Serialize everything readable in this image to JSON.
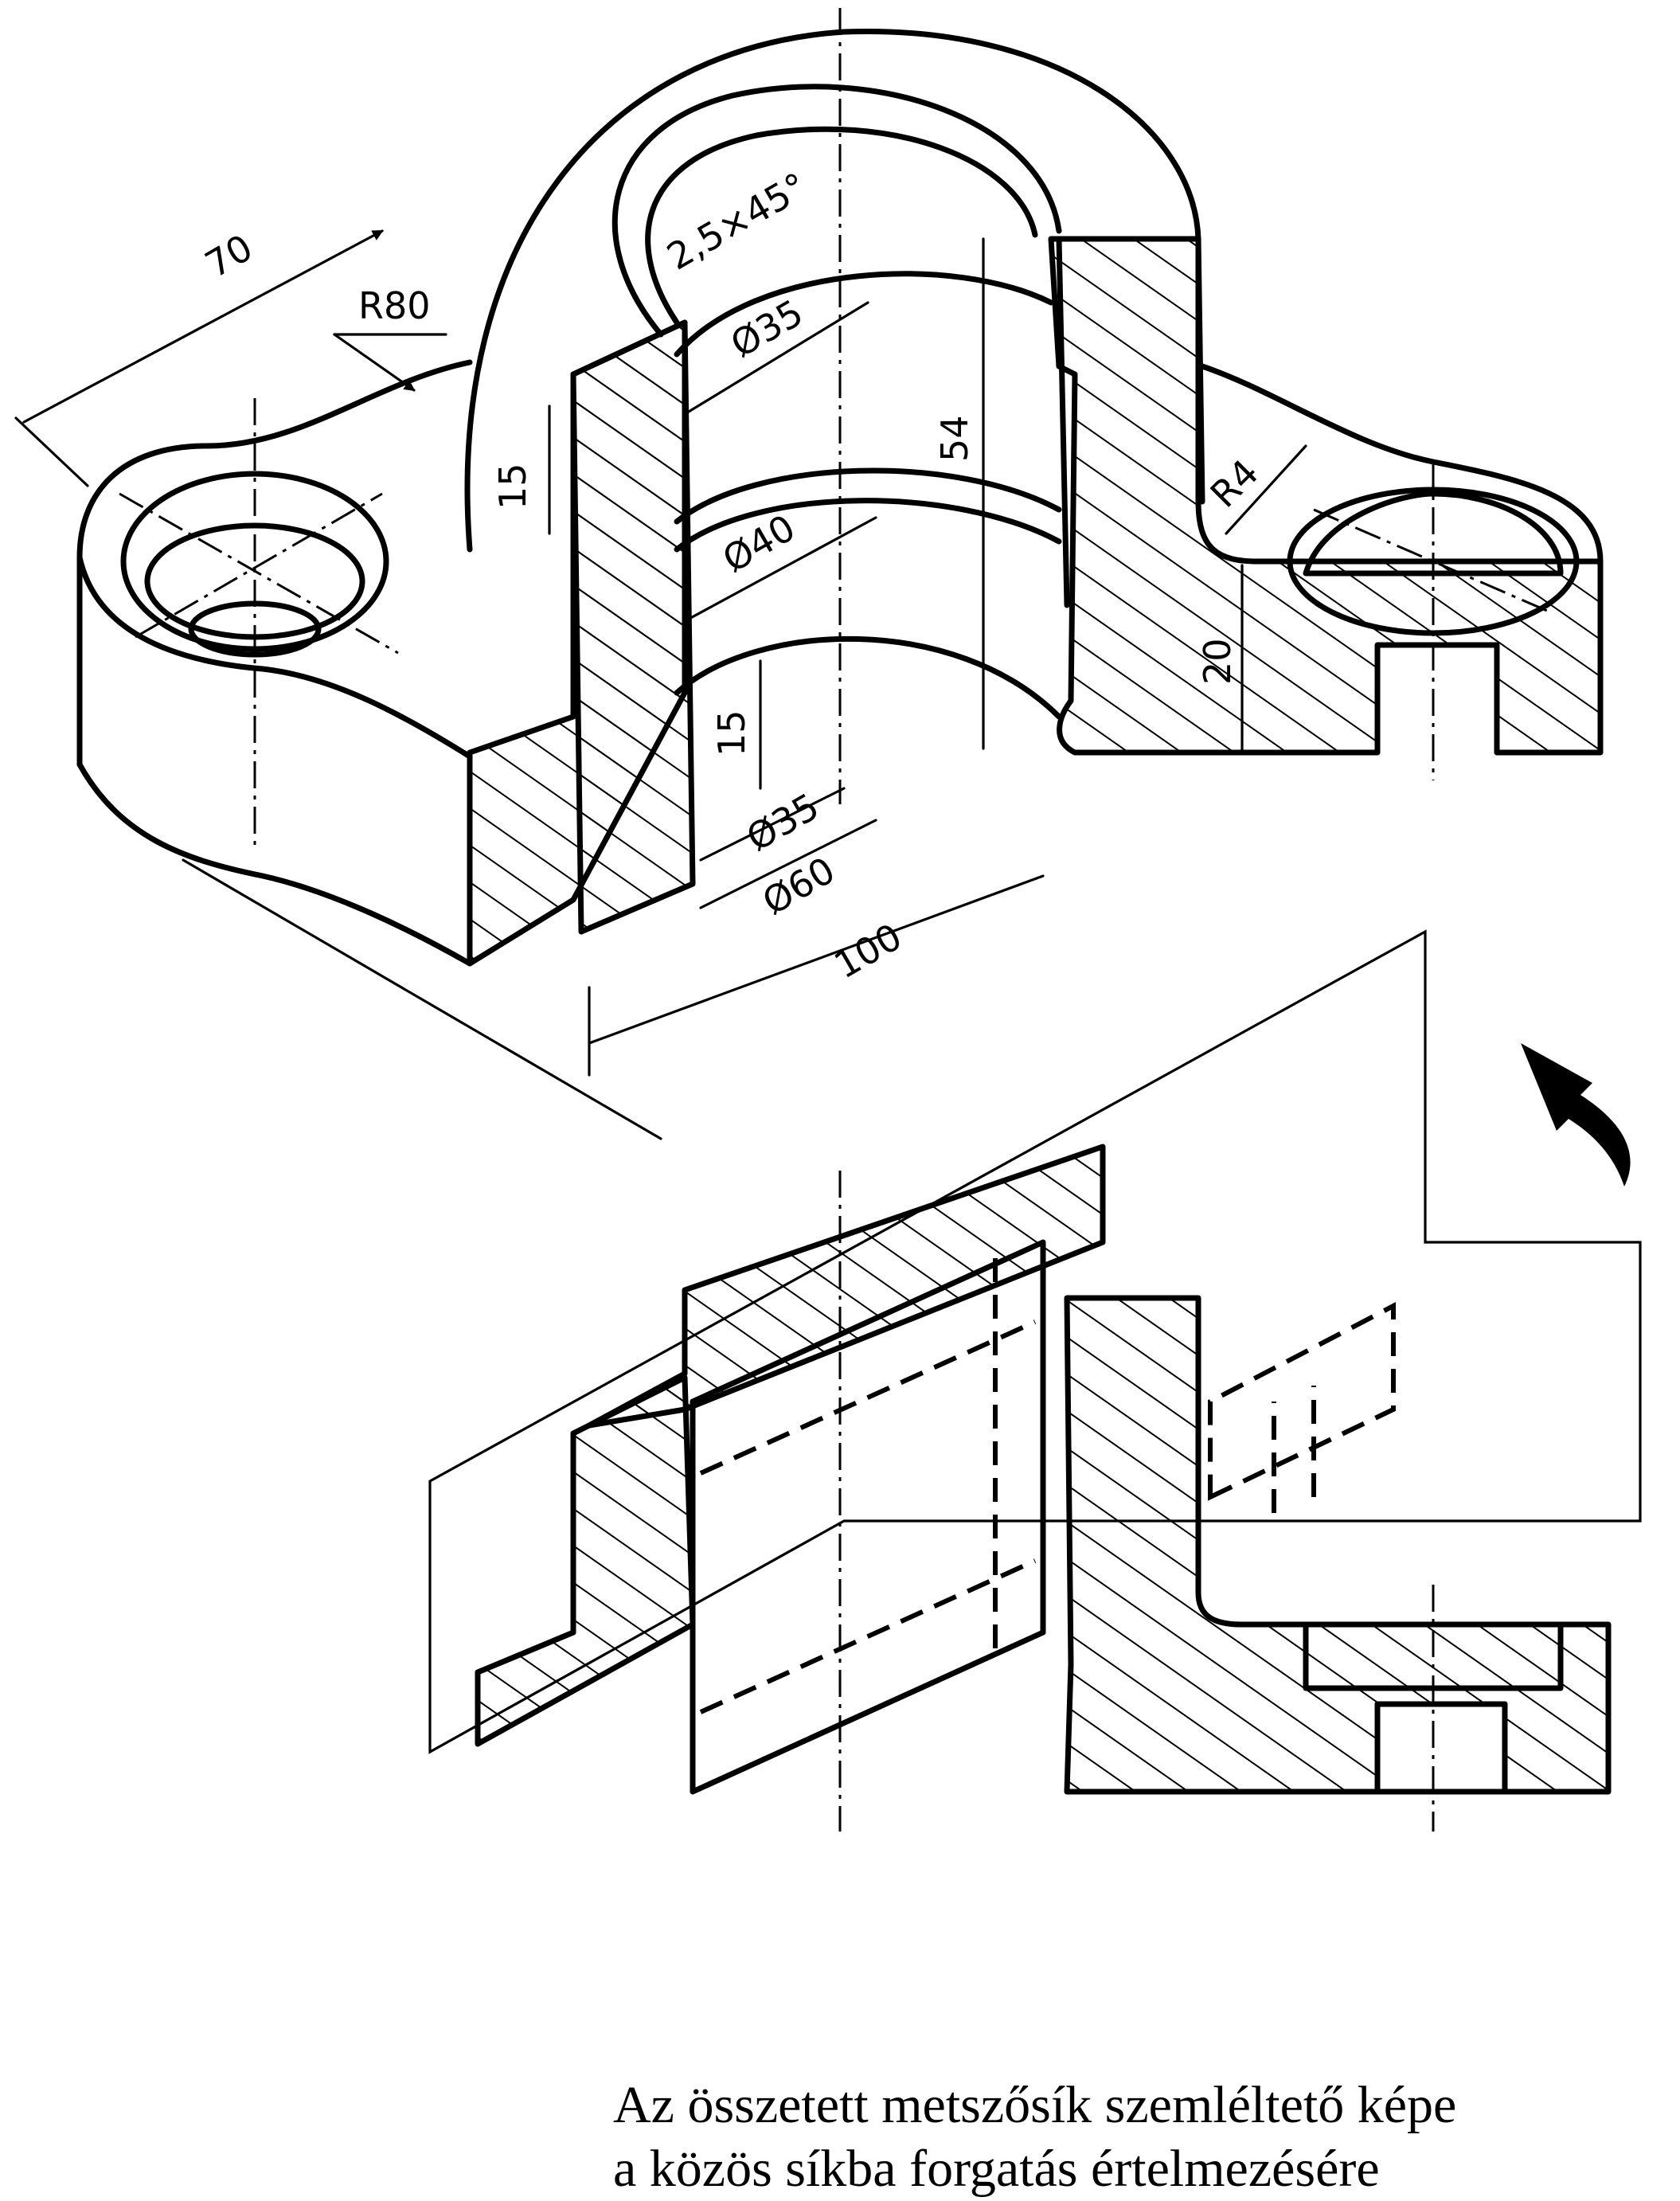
{
  "dimensions": {
    "d70": "70",
    "r80": "R80",
    "chamfer": "2,5×45°",
    "dia35_top": "Ø35",
    "h15_left": "15",
    "dia40": "Ø40",
    "h54": "54",
    "r4": "R4",
    "h20": "20",
    "h15_lower": "15",
    "dia35_low": "Ø35",
    "dia60": "Ø60",
    "d100": "100"
  },
  "caption": {
    "line1": "Az összetett metszősík szemléltető képe",
    "line2": "a közös síkba forgatás értelmezésére"
  }
}
